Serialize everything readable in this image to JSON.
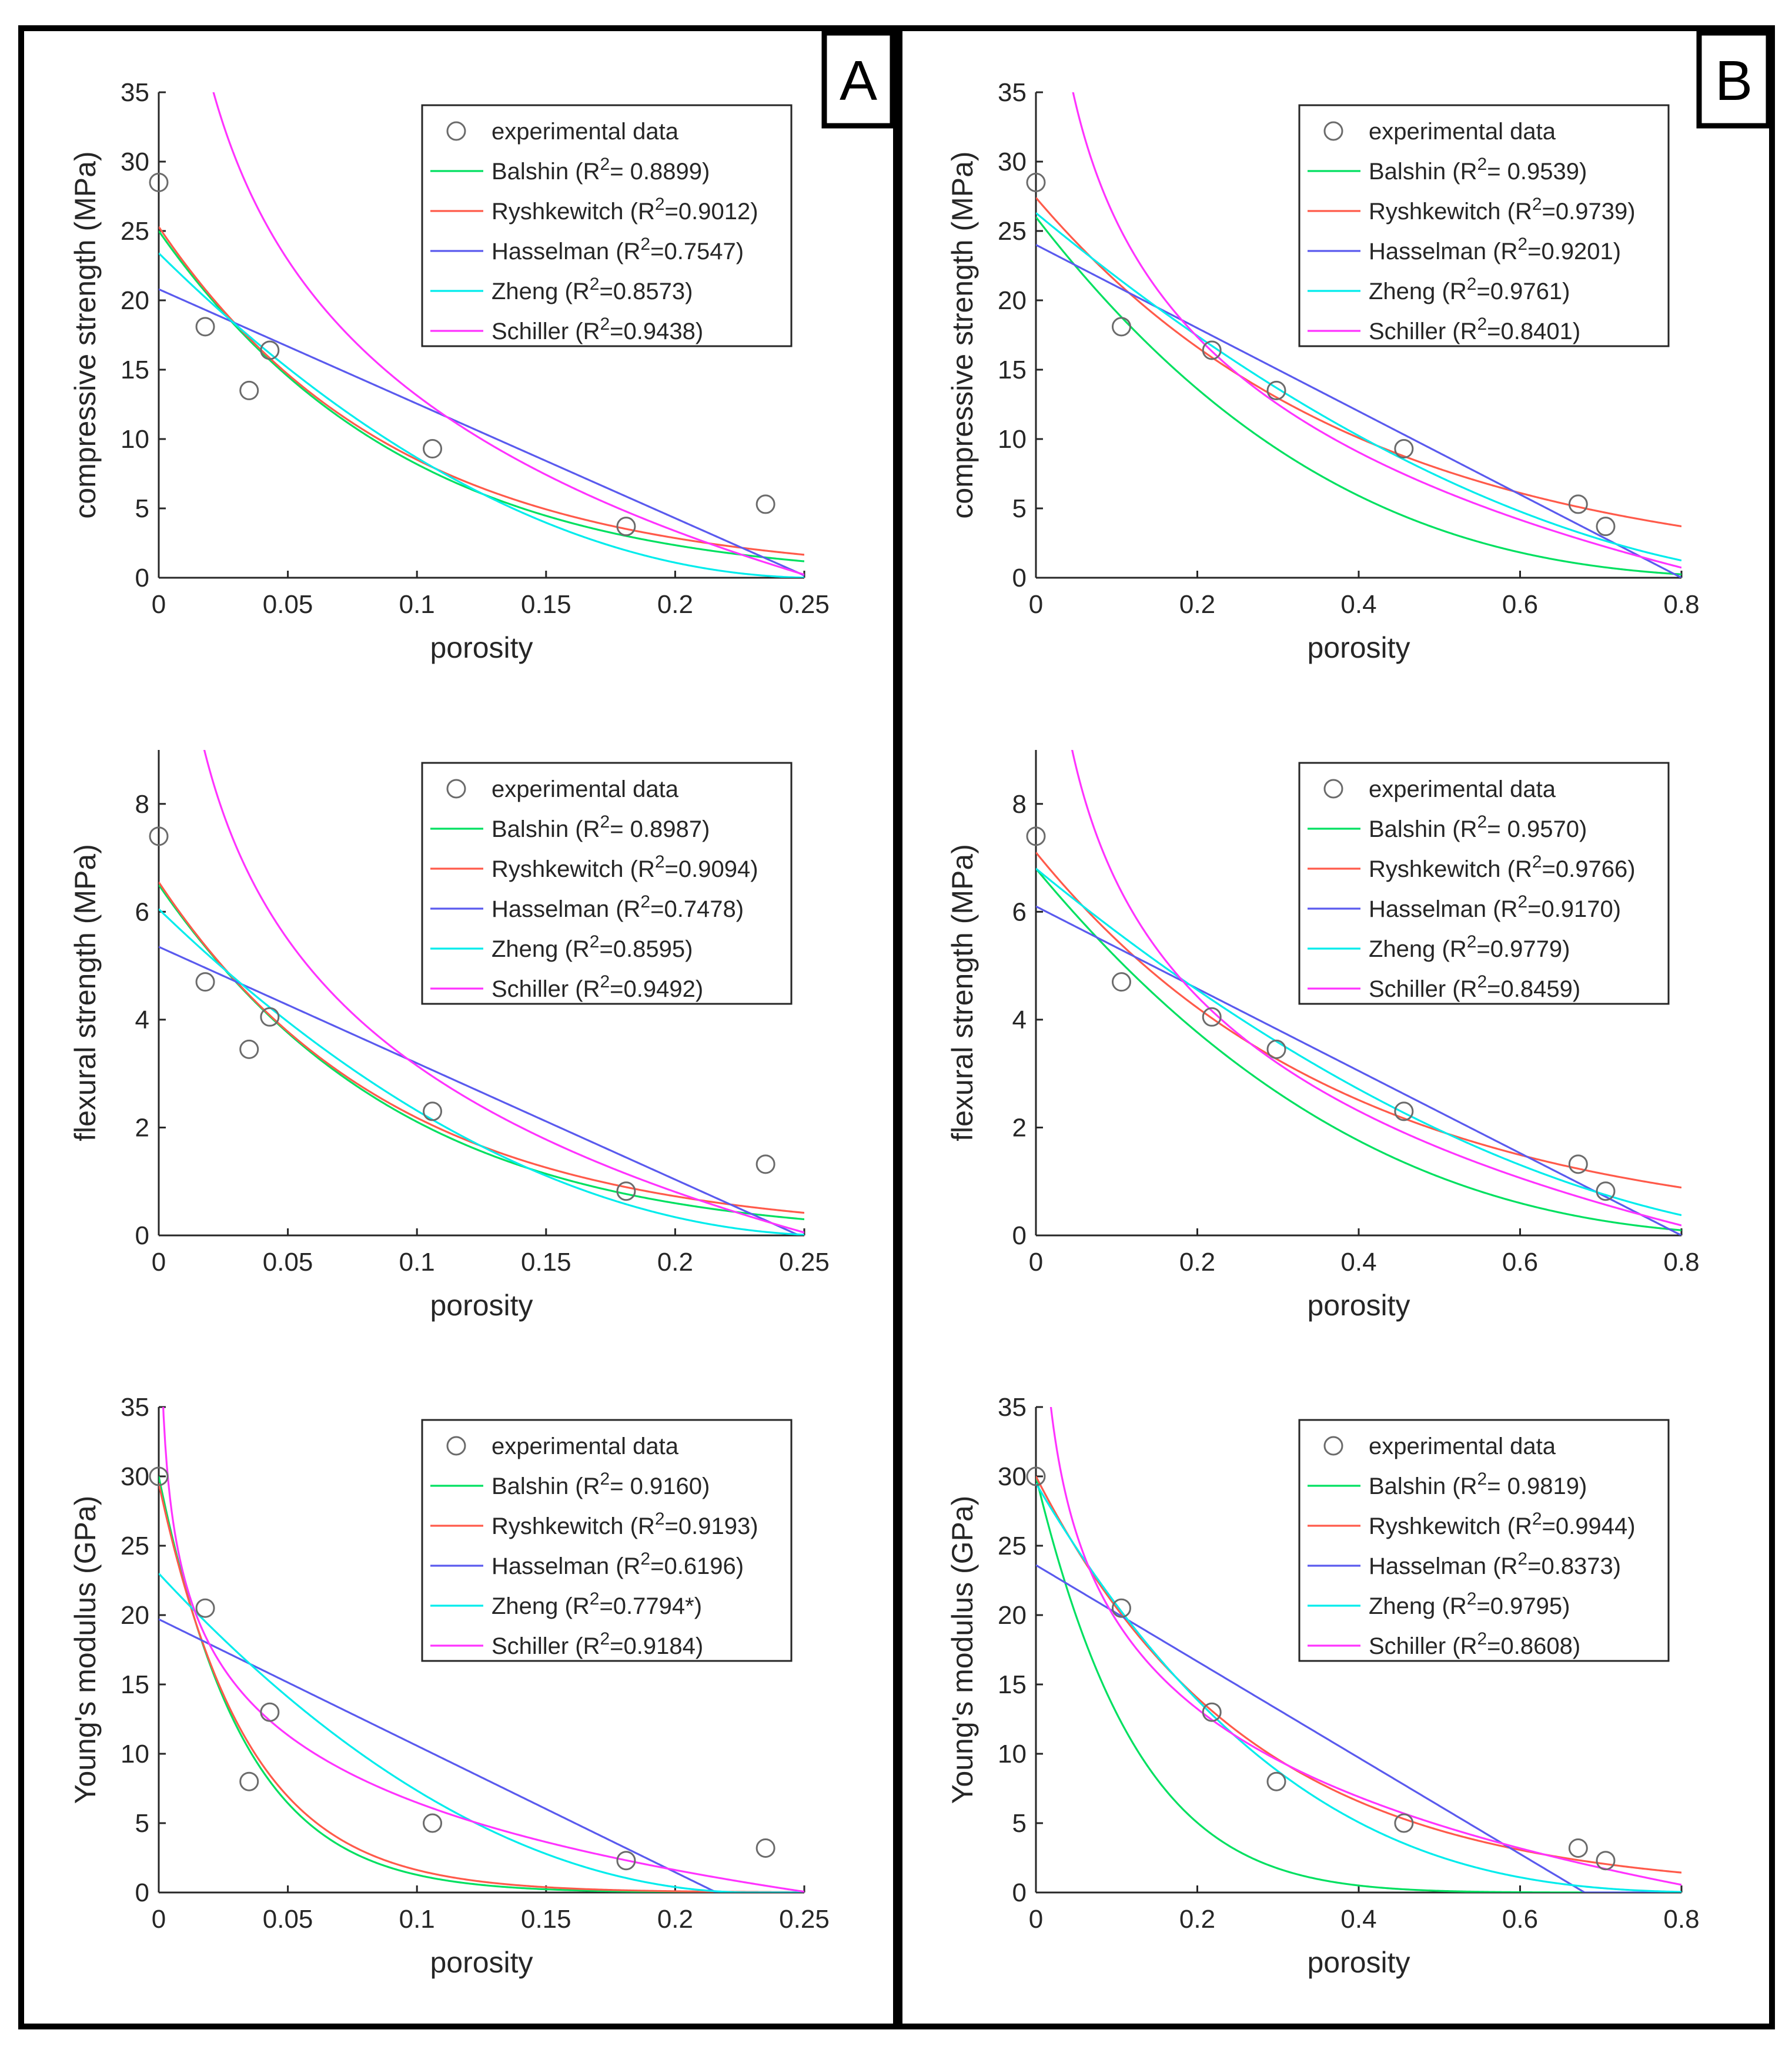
{
  "colors": {
    "Balshin": "#00e060",
    "Ryshkewitch": "#ff5a4a",
    "Hasselman": "#5a5aee",
    "Zheng": "#00ecec",
    "Schiller": "#ff33ff",
    "experimental": "#6b6b6b"
  },
  "panels": [
    {
      "id": "A",
      "label": "A"
    },
    {
      "id": "B",
      "label": "B"
    }
  ],
  "chart_data": [
    {
      "panel": "A",
      "row": 0,
      "type": "line",
      "xlabel": "porosity",
      "ylabel": "compressive strength (MPa)",
      "xlim": [
        0,
        0.25
      ],
      "ylim": [
        0,
        35
      ],
      "xticks": [
        "0",
        "0.05",
        "0.1",
        "0.15",
        "0.2",
        "0.25"
      ],
      "yticks": [
        "0",
        "5",
        "10",
        "15",
        "20",
        "25",
        "30",
        "35"
      ],
      "legend": "top-right",
      "experimental": {
        "label": "experimental data",
        "x": [
          0.0,
          0.018,
          0.035,
          0.043,
          0.106,
          0.181,
          0.235
        ],
        "y": [
          28.5,
          18.1,
          13.5,
          16.4,
          9.3,
          3.7,
          5.3
        ]
      },
      "series": [
        {
          "name": "Balshin",
          "label": "Balshin (R²= 0.8899)",
          "model": "balshin",
          "params": [
            25.0,
            10.6
          ]
        },
        {
          "name": "Ryshkewitch",
          "label": "Ryshkewitch (R²=0.9012)",
          "model": "ryshkewitch",
          "params": [
            25.3,
            10.9
          ]
        },
        {
          "name": "Hasselman",
          "label": "Hasselman (R²=0.7547)",
          "model": "hasselman",
          "params": [
            20.8,
            0.252
          ]
        },
        {
          "name": "Zheng",
          "label": "Zheng (R²=0.8573)",
          "model": "zheng",
          "params": [
            23.4,
            0.255,
            2.0
          ]
        },
        {
          "name": "Schiller",
          "label": "Schiller (R²=0.9438)",
          "model": "schiller",
          "params": [
            5.22,
            2.7,
            0.254
          ]
        }
      ]
    },
    {
      "panel": "A",
      "row": 1,
      "type": "line",
      "xlabel": "porosity",
      "ylabel": "flexural strength (MPa)",
      "xlim": [
        0,
        0.25
      ],
      "ylim": [
        0,
        9
      ],
      "xticks": [
        "0",
        "0.05",
        "0.1",
        "0.15",
        "0.2",
        "0.25"
      ],
      "yticks": [
        "0",
        "2",
        "4",
        "6",
        "8"
      ],
      "legend": "top-right",
      "experimental": {
        "label": "experimental data",
        "x": [
          0.0,
          0.018,
          0.035,
          0.043,
          0.106,
          0.181,
          0.235
        ],
        "y": [
          7.4,
          4.7,
          3.45,
          4.05,
          2.3,
          0.82,
          1.32
        ]
      },
      "series": [
        {
          "name": "Balshin",
          "label": "Balshin (R²= 0.8987)",
          "model": "balshin",
          "params": [
            6.5,
            10.7
          ]
        },
        {
          "name": "Ryshkewitch",
          "label": "Ryshkewitch (R²=0.9094)",
          "model": "ryshkewitch",
          "params": [
            6.55,
            11.0
          ]
        },
        {
          "name": "Hasselman",
          "label": "Hasselman (R²=0.7478)",
          "model": "hasselman",
          "params": [
            5.35,
            0.248
          ]
        },
        {
          "name": "Zheng",
          "label": "Zheng (R²=0.8595)",
          "model": "zheng",
          "params": [
            6.05,
            0.262,
            2.0
          ]
        },
        {
          "name": "Schiller",
          "label": "Schiller (R²=0.9492)",
          "model": "schiller",
          "params": [
            1.25,
            2.7,
            0.254
          ]
        }
      ]
    },
    {
      "panel": "A",
      "row": 2,
      "type": "line",
      "xlabel": "porosity",
      "ylabel": "Young's modulus (GPa)",
      "xlim": [
        0,
        0.25
      ],
      "ylim": [
        0,
        35
      ],
      "xticks": [
        "0",
        "0.05",
        "0.1",
        "0.15",
        "0.2",
        "0.25"
      ],
      "yticks": [
        "0",
        "5",
        "10",
        "15",
        "20",
        "25",
        "30",
        "35"
      ],
      "legend": "top-right",
      "experimental": {
        "label": "experimental data",
        "x": [
          0.0,
          0.018,
          0.035,
          0.043,
          0.106,
          0.181,
          0.235
        ],
        "y": [
          30.0,
          20.5,
          8.0,
          13.0,
          5.0,
          2.3,
          3.2
        ]
      },
      "series": [
        {
          "name": "Balshin",
          "label": "Balshin (R²= 0.9160)",
          "model": "balshin",
          "params": [
            30.0,
            30.0
          ]
        },
        {
          "name": "Ryshkewitch",
          "label": "Ryshkewitch (R²=0.9193)",
          "model": "ryshkewitch",
          "params": [
            29.5,
            29.0
          ]
        },
        {
          "name": "Hasselman",
          "label": "Hasselman (R²=0.6196)",
          "model": "hasselman",
          "params": [
            19.7,
            0.216
          ]
        },
        {
          "name": "Zheng",
          "label": "Zheng (R²=0.7794*)",
          "model": "zheng",
          "params": [
            23.0,
            0.23,
            2.0
          ]
        },
        {
          "name": "Schiller",
          "label": "Schiller (R²=0.9184)",
          "model": "schiller",
          "params": [
            2.55,
            2.75,
            0.252
          ]
        }
      ]
    },
    {
      "panel": "B",
      "row": 0,
      "type": "line",
      "xlabel": "porosity",
      "ylabel": "compressive strength (MPa)",
      "xlim": [
        0,
        0.8
      ],
      "ylim": [
        0,
        35
      ],
      "xticks": [
        "0",
        "0.2",
        "0.4",
        "0.6",
        "0.8"
      ],
      "yticks": [
        "0",
        "5",
        "10",
        "15",
        "20",
        "25",
        "30",
        "35"
      ],
      "legend": "top-right",
      "experimental": {
        "label": "experimental data",
        "x": [
          0.0,
          0.106,
          0.218,
          0.298,
          0.456,
          0.672,
          0.706
        ],
        "y": [
          28.5,
          18.1,
          16.4,
          13.5,
          9.3,
          5.3,
          3.7
        ]
      },
      "series": [
        {
          "name": "Balshin",
          "label": "Balshin (R²= 0.9539)",
          "model": "balshin",
          "params": [
            26.0,
            2.9
          ]
        },
        {
          "name": "Ryshkewitch",
          "label": "Ryshkewitch (R²=0.9739)",
          "model": "ryshkewitch",
          "params": [
            27.4,
            2.5
          ]
        },
        {
          "name": "Hasselman",
          "label": "Hasselman (R²=0.9201)",
          "model": "hasselman",
          "params": [
            24.0,
            0.8
          ]
        },
        {
          "name": "Zheng",
          "label": "Zheng (R²=0.9761)",
          "model": "zheng",
          "params": [
            26.3,
            0.98,
            1.8
          ]
        },
        {
          "name": "Schiller",
          "label": "Schiller (R²=0.8401)",
          "model": "schiller",
          "params": [
            10.0,
            1.2,
            0.85
          ]
        }
      ]
    },
    {
      "panel": "B",
      "row": 1,
      "type": "line",
      "xlabel": "porosity",
      "ylabel": "flexural strength (MPa)",
      "xlim": [
        0,
        0.8
      ],
      "ylim": [
        0,
        9
      ],
      "xticks": [
        "0",
        "0.2",
        "0.4",
        "0.6",
        "0.8"
      ],
      "yticks": [
        "0",
        "2",
        "4",
        "6",
        "8"
      ],
      "legend": "top-right",
      "experimental": {
        "label": "experimental data",
        "x": [
          0.0,
          0.106,
          0.218,
          0.298,
          0.456,
          0.672,
          0.706
        ],
        "y": [
          7.4,
          4.7,
          4.05,
          3.45,
          2.3,
          1.32,
          0.82
        ]
      },
      "series": [
        {
          "name": "Balshin",
          "label": "Balshin (R²= 0.9570)",
          "model": "balshin",
          "params": [
            6.8,
            2.65
          ]
        },
        {
          "name": "Ryshkewitch",
          "label": "Ryshkewitch (R²=0.9766)",
          "model": "ryshkewitch",
          "params": [
            7.1,
            2.6
          ]
        },
        {
          "name": "Hasselman",
          "label": "Hasselman (R²=0.9170)",
          "model": "hasselman",
          "params": [
            6.1,
            0.8
          ]
        },
        {
          "name": "Zheng",
          "label": "Zheng (R²=0.9779)",
          "model": "zheng",
          "params": [
            6.8,
            1.0,
            1.8
          ]
        },
        {
          "name": "Schiller",
          "label": "Schiller (R²=0.8459)",
          "model": "schiller",
          "params": [
            2.55,
            1.2,
            0.85
          ]
        }
      ]
    },
    {
      "panel": "B",
      "row": 2,
      "type": "line",
      "xlabel": "porosity",
      "ylabel": "Young's modulus (GPa)",
      "xlim": [
        0,
        0.8
      ],
      "ylim": [
        0,
        35
      ],
      "xticks": [
        "0",
        "0.2",
        "0.4",
        "0.6",
        "0.8"
      ],
      "yticks": [
        "0",
        "5",
        "10",
        "15",
        "20",
        "25",
        "30",
        "35"
      ],
      "legend": "top-right",
      "experimental": {
        "label": "experimental data",
        "x": [
          0.0,
          0.106,
          0.218,
          0.298,
          0.456,
          0.672,
          0.706
        ],
        "y": [
          30.0,
          20.5,
          13.0,
          8.0,
          5.0,
          3.2,
          2.3
        ]
      },
      "series": [
        {
          "name": "Balshin",
          "label": "Balshin (R²= 0.9819)",
          "model": "balshin",
          "params": [
            30.0,
            8.0
          ]
        },
        {
          "name": "Ryshkewitch",
          "label": "Ryshkewitch (R²=0.9944)",
          "model": "ryshkewitch",
          "params": [
            30.0,
            3.8
          ]
        },
        {
          "name": "Hasselman",
          "label": "Hasselman (R²=0.8373)",
          "model": "hasselman",
          "params": [
            23.6,
            0.68
          ]
        },
        {
          "name": "Zheng",
          "label": "Zheng (R²=0.9795)",
          "model": "zheng",
          "params": [
            29.5,
            0.9,
            3.0
          ]
        },
        {
          "name": "Schiller",
          "label": "Schiller (R²=0.8608)",
          "model": "schiller",
          "params": [
            6.1,
            1.5,
            0.85
          ]
        }
      ]
    }
  ]
}
